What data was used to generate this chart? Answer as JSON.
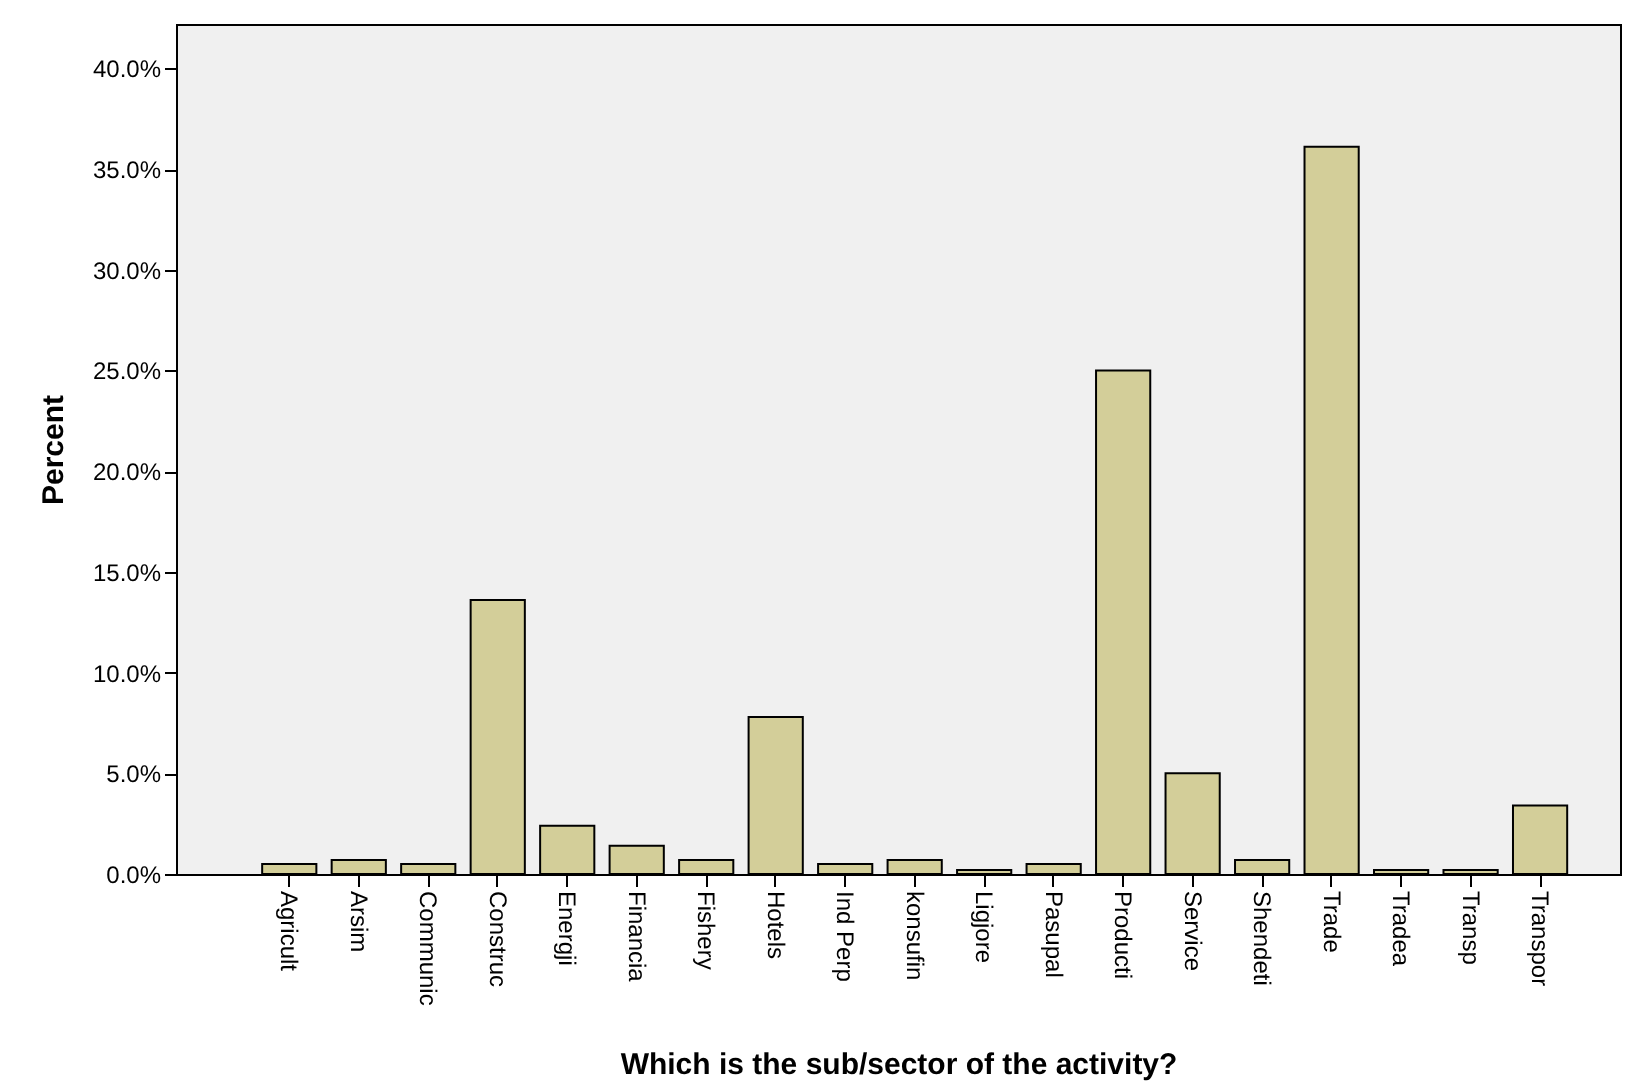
{
  "chart_data": {
    "type": "bar",
    "xlabel": "Which is the sub/sector of the activity?",
    "ylabel": "Percent",
    "categories": [
      "Agricult",
      "Arsim",
      "Communic",
      "Construc",
      "Energji",
      "Financia",
      "Fishery",
      "Hotels",
      "Ind Perp",
      "konsufin",
      "Ligjore",
      "Pasupal",
      "Producti",
      "Service",
      "Shendeti",
      "Trade",
      "Tradea",
      "Transp",
      "Transpor"
    ],
    "values": [
      0.5,
      0.7,
      0.5,
      13.6,
      2.4,
      1.4,
      0.7,
      7.8,
      0.5,
      0.7,
      0.2,
      0.5,
      25.0,
      5.0,
      0.7,
      36.1,
      0.2,
      0.2,
      3.4
    ],
    "color": "#d3ce99",
    "ylim": [
      0,
      42.2
    ],
    "yticks": [
      {
        "value": 0,
        "label": "0.0%"
      },
      {
        "value": 5,
        "label": "5.0%"
      },
      {
        "value": 10,
        "label": "10.0%"
      },
      {
        "value": 15,
        "label": "15.0%"
      },
      {
        "value": 20,
        "label": "20.0%"
      },
      {
        "value": 25,
        "label": "25.0%"
      },
      {
        "value": 30,
        "label": "30.0%"
      },
      {
        "value": 35,
        "label": "35.0%"
      },
      {
        "value": 40,
        "label": "40.0%"
      }
    ],
    "grid": false
  }
}
